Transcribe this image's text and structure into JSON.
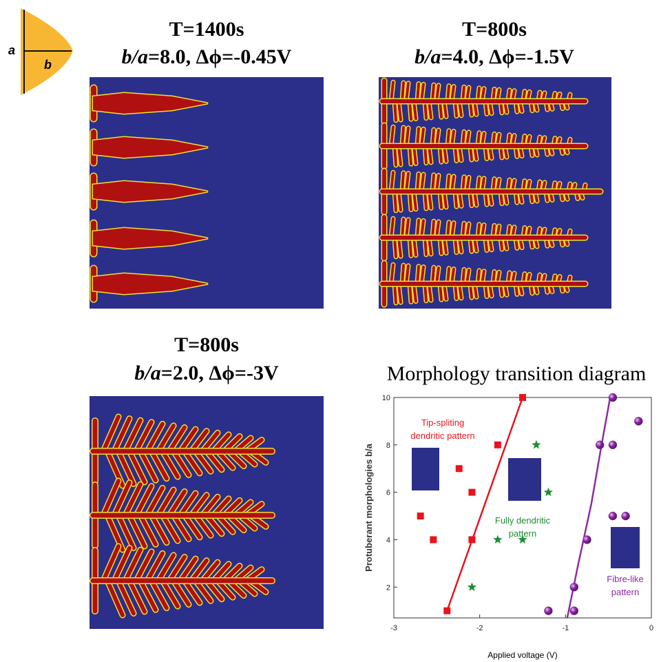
{
  "icon": {
    "a": "a",
    "b": "b"
  },
  "panels": [
    {
      "time": "T=1400s",
      "ratio": "b/a",
      "params": "=8.0, Δϕ=-0.45V"
    },
    {
      "time": "T=800s",
      "ratio": "b/a",
      "params": "=4.0, Δϕ=-1.5V"
    },
    {
      "time": "T=800s",
      "ratio": "b/a",
      "params": "=2.0, Δϕ=-3V"
    }
  ],
  "chart_data": {
    "type": "scatter",
    "title": "Morphology transition diagram",
    "x_label": "Applied voltage (V)",
    "y_label": "Protuberant morphologies b/a",
    "xlim": [
      -3,
      0
    ],
    "ylim": [
      0.7,
      10
    ],
    "xticks": [
      -3,
      -2,
      -1,
      0
    ],
    "yticks": [
      2,
      4,
      6,
      8,
      10
    ],
    "series": [
      {
        "marker": "square",
        "color": "#e8141c",
        "x": [
          -2.69,
          -2.54,
          -2.24,
          -2.09,
          -2.09,
          -1.79,
          -1.5,
          -2.38
        ],
        "values": [
          5,
          4,
          7,
          6,
          4,
          8,
          10,
          1
        ]
      },
      {
        "marker": "star",
        "color": "#1e8c32",
        "x": [
          -1.34,
          -1.2,
          -1.79,
          -1.5,
          -2.09
        ],
        "values": [
          8,
          6,
          4,
          4,
          2
        ]
      },
      {
        "marker": "sphere",
        "color": "#7b2a8f",
        "x": [
          -0.6,
          -0.45,
          -0.45,
          -0.15,
          -0.45,
          -0.3,
          -0.75,
          -0.9,
          -1.2,
          -0.9
        ],
        "values": [
          8,
          8,
          10,
          9,
          5,
          5,
          4,
          2,
          1,
          1
        ]
      }
    ],
    "lines": [
      {
        "color": "#e8141c",
        "x": [
          -2.38,
          -1.5
        ],
        "values": [
          1,
          10
        ]
      },
      {
        "color": "#8e2aa8",
        "x": [
          -0.98,
          -0.85,
          -0.7,
          -0.58,
          -0.48
        ],
        "values": [
          0.7,
          3,
          5.5,
          8,
          10
        ]
      }
    ],
    "annotations": [
      {
        "lines": [
          "Tip-spliting",
          "dendritic pattern"
        ],
        "color": "#e8141c"
      },
      {
        "lines": [
          "Fully dendritic",
          "pattern"
        ],
        "color": "#1e8c32"
      },
      {
        "lines": [
          "Fibre-like",
          "pattern"
        ],
        "color": "#8e2aa8"
      }
    ]
  }
}
